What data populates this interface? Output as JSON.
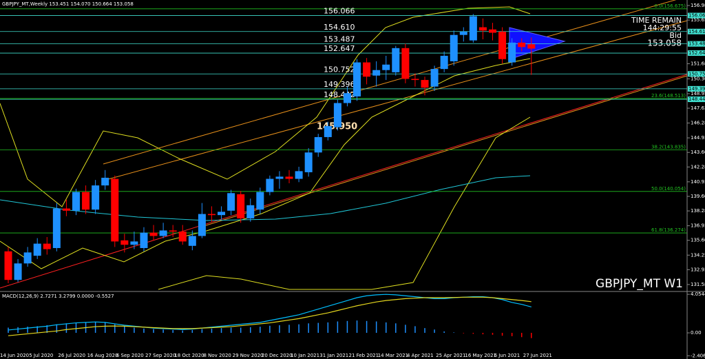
{
  "chart_data": [
    {
      "type": "candlestick",
      "title": "GBPJPY_MT,Weekly 153.451 154.070 150.664 153.058",
      "categories": [
        "14 Jun 2020",
        null,
        null,
        "5 Jul 2020",
        null,
        null,
        "26 Jul 2020",
        null,
        null,
        "16 Aug 2020",
        null,
        null,
        "6 Sep 2020",
        null,
        null,
        "27 Sep 2020",
        null,
        null,
        "18 Oct 2020",
        null,
        null,
        "8 Nov 2020",
        null,
        null,
        "29 Nov 2020",
        null,
        null,
        "20 Dec 2020",
        null,
        null,
        "10 Jan 2021",
        null,
        null,
        "31 Jan 2021",
        null,
        null,
        "21 Feb 2021",
        null,
        null,
        "14 Mar 2021",
        null,
        null,
        "4 Apr 2021",
        null,
        null,
        "25 Apr 2021",
        null,
        null,
        "16 May 2021",
        null,
        null,
        "6 Jun 2021",
        null,
        null,
        "27 Jun 2021"
      ],
      "open": [
        134.6,
        132.0,
        133.5,
        134.2,
        135.3,
        134.9,
        138.5,
        138.3,
        140.0,
        138.4,
        140.6,
        141.2,
        135.6,
        135.2,
        134.9,
        136.3,
        136.0,
        136.5,
        136.4,
        135.1,
        136.0,
        138.0,
        137.9,
        138.3,
        139.8,
        137.6,
        138.4,
        140.0,
        141.2,
        141.4,
        141.2,
        141.8,
        143.6,
        145.0,
        145.9,
        148.1,
        148.7,
        151.8,
        150.6,
        151.1,
        150.9,
        153.1,
        150.3,
        150.2,
        149.6,
        151.2,
        151.9,
        154.3,
        153.8,
        155.0,
        154.8,
        154.6,
        151.8,
        153.6,
        153.451
      ],
      "high": [
        135.0,
        133.9,
        135.0,
        135.8,
        135.9,
        139.0,
        139.3,
        140.3,
        140.6,
        141.1,
        142.0,
        141.5,
        136.2,
        136.4,
        136.8,
        137.0,
        137.2,
        137.0,
        137.0,
        136.5,
        139.0,
        138.7,
        138.7,
        140.2,
        140.1,
        139.4,
        140.4,
        141.5,
        141.9,
        142.0,
        142.3,
        144.0,
        145.3,
        146.4,
        148.4,
        149.6,
        152.1,
        152.2,
        151.9,
        152.4,
        153.3,
        153.5,
        150.8,
        150.5,
        151.5,
        152.8,
        154.7,
        155.0,
        156.2,
        155.8,
        155.4,
        155.0,
        154.0,
        154.0,
        154.07
      ],
      "low": [
        131.7,
        131.8,
        133.2,
        133.9,
        134.3,
        134.6,
        137.8,
        137.9,
        138.0,
        138.0,
        140.2,
        135.0,
        134.5,
        134.8,
        134.6,
        135.6,
        135.8,
        135.9,
        135.2,
        134.7,
        135.8,
        137.3,
        137.5,
        137.9,
        137.2,
        137.3,
        138.0,
        139.7,
        140.3,
        140.8,
        140.9,
        141.4,
        143.2,
        144.7,
        145.6,
        147.8,
        148.3,
        149.8,
        149.6,
        150.2,
        150.6,
        149.9,
        149.6,
        148.8,
        149.2,
        150.9,
        151.5,
        153.7,
        153.6,
        153.9,
        153.8,
        151.7,
        151.5,
        152.8,
        150.664
      ],
      "close": [
        132.0,
        133.5,
        134.5,
        135.3,
        134.8,
        138.5,
        138.3,
        140.0,
        138.4,
        140.6,
        141.3,
        135.5,
        135.2,
        135.5,
        136.3,
        136.0,
        136.5,
        136.4,
        135.5,
        136.0,
        138.0,
        137.9,
        138.2,
        139.9,
        137.6,
        138.8,
        140.0,
        141.2,
        141.4,
        141.2,
        141.9,
        143.6,
        145.0,
        146.0,
        148.1,
        149.0,
        151.8,
        150.5,
        151.1,
        151.6,
        153.1,
        150.3,
        150.2,
        149.5,
        151.2,
        152.4,
        154.3,
        154.6,
        156.0,
        154.7,
        154.5,
        152.1,
        153.6,
        153.2,
        153.058
      ],
      "up_color": "#1e90ff",
      "down_color": "#ff0000",
      "ylim": [
        131.01,
        157.48
      ],
      "yticks": [
        {
          "value": 156.98,
          "label": "156.980"
        },
        155.655,
        {
          "value": 151.68,
          "label": "151.680"
        },
        150.305,
        148.955,
        {
          "value": 147.63,
          "label": "147.630"
        },
        {
          "value": 146.28,
          "label": "146.280"
        },
        {
          "value": 144.93,
          "label": "144.930"
        },
        143.605,
        {
          "value": 142.28,
          "label": "142.280"
        },
        {
          "value": 140.93,
          "label": "140.930"
        },
        139.605,
        {
          "value": 138.28,
          "label": "138.280"
        },
        {
          "value": 136.93,
          "label": "136.930"
        },
        135.605,
        134.255,
        {
          "value": 132.93,
          "label": "132.930"
        },
        {
          "value": 131.58,
          "label": "131.580"
        }
      ],
      "levels": [
        156.066,
        {
          "value": 154.61,
          "label": "154.610"
        },
        153.487,
        152.647,
        150.752,
        149.396,
        148.442
      ],
      "level_color": "#40e0d0",
      "fib": [
        {
          "label": "0.0(156.675)",
          "value": 156.675
        },
        {
          "label": "23.6(148.513)",
          "value": 148.513
        },
        {
          "label": "38.2(143.835)",
          "value": 143.835
        },
        {
          "label": "50.0(140.054)",
          "value": 140.054
        },
        {
          "label": "61.8(136.274)",
          "value": 136.274
        }
      ],
      "fib_color": "#22c322",
      "price_label": {
        "value": 145.95,
        "label": "145.950"
      },
      "info": {
        "time_remain": "TIME REMAIN",
        "timer": "144:29:55",
        "bid_label": "Bid",
        "bid": "153.058",
        "symbol": "GBPJPY_MT W1"
      }
    },
    {
      "type": "macd",
      "title": "MACD(12,26,9) 2.7271 3.2799 0.0000 -0.5527",
      "histogram": [
        0.55,
        0.6,
        0.65,
        0.7,
        0.8,
        0.9,
        1.0,
        1.05,
        1.1,
        1.15,
        1.1,
        0.9,
        0.7,
        0.55,
        0.45,
        0.4,
        0.35,
        0.3,
        0.25,
        0.3,
        0.4,
        0.45,
        0.5,
        0.55,
        0.55,
        0.6,
        0.65,
        0.75,
        0.8,
        0.85,
        0.9,
        1.0,
        1.05,
        1.1,
        1.2,
        1.25,
        1.3,
        1.25,
        1.2,
        1.1,
        1.0,
        0.85,
        0.7,
        0.5,
        0.35,
        0.15,
        0.05,
        -0.05,
        -0.1,
        -0.15,
        -0.2,
        -0.3,
        -0.35,
        -0.45,
        -0.5527
      ],
      "histogram_color": "#1e90ff",
      "negative_color": "#ff0000",
      "series": [
        {
          "name": "MACD",
          "color": "#00bfff",
          "values": [
            0.3,
            0.4,
            0.5,
            0.6,
            0.7,
            0.85,
            0.95,
            1.05,
            1.1,
            1.15,
            1.1,
            0.95,
            0.8,
            0.7,
            0.6,
            0.5,
            0.45,
            0.4,
            0.35,
            0.4,
            0.5,
            0.6,
            0.7,
            0.8,
            0.9,
            1.0,
            1.1,
            1.3,
            1.5,
            1.7,
            1.9,
            2.2,
            2.5,
            2.8,
            3.1,
            3.4,
            3.7,
            3.9,
            4.0,
            4.05,
            4.0,
            3.9,
            3.8,
            3.7,
            3.6,
            3.6,
            3.7,
            3.75,
            3.8,
            3.8,
            3.7,
            3.5,
            3.2,
            3.0,
            2.7271
          ]
        },
        {
          "name": "Signal",
          "color": "#e6d81e",
          "values": [
            -0.3,
            -0.2,
            -0.1,
            0.0,
            0.1,
            0.2,
            0.35,
            0.45,
            0.55,
            0.65,
            0.7,
            0.72,
            0.7,
            0.65,
            0.6,
            0.55,
            0.5,
            0.45,
            0.45,
            0.45,
            0.5,
            0.55,
            0.6,
            0.65,
            0.75,
            0.85,
            0.95,
            1.05,
            1.2,
            1.35,
            1.5,
            1.7,
            1.9,
            2.1,
            2.35,
            2.6,
            2.85,
            3.05,
            3.25,
            3.4,
            3.5,
            3.6,
            3.65,
            3.7,
            3.7,
            3.7,
            3.72,
            3.75,
            3.75,
            3.75,
            3.7,
            3.6,
            3.5,
            3.4,
            3.2799
          ]
        }
      ],
      "ylim": [
        -2.75,
        4.28
      ],
      "yticks": [
        4.0544,
        {
          "value": 0,
          "label": "0.00"
        },
        -2.4068
      ]
    }
  ]
}
